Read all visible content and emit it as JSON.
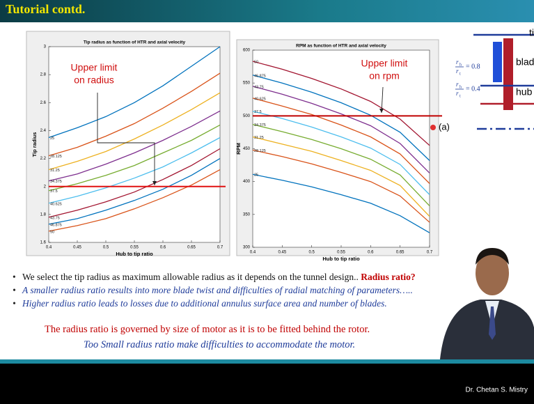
{
  "header": {
    "title": "Tutorial contd."
  },
  "chart_data": [
    {
      "type": "line",
      "title": "Tip radius as function of HTR and axial velocity",
      "xlabel": "Hub to tip ratio",
      "ylabel": "Tip radius",
      "x": [
        0.4,
        0.45,
        0.5,
        0.55,
        0.6,
        0.65,
        0.7
      ],
      "xlim": [
        0.4,
        0.7
      ],
      "xticks": [
        0.4,
        0.45,
        0.5,
        0.55,
        0.6,
        0.65,
        0.7
      ],
      "ylim": [
        1.6,
        3
      ],
      "yticks": [
        1.6,
        1.8,
        2,
        2.2,
        2.4,
        2.6,
        2.8,
        3
      ],
      "series": [
        {
          "name": "25",
          "color": "#0072BD",
          "values": [
            2.35,
            2.42,
            2.5,
            2.6,
            2.72,
            2.86,
            3.0
          ]
        },
        {
          "name": "28.125",
          "color": "#D95319",
          "values": [
            2.22,
            2.28,
            2.36,
            2.45,
            2.56,
            2.68,
            2.81
          ]
        },
        {
          "name": "31.25",
          "color": "#EDB120",
          "values": [
            2.12,
            2.18,
            2.25,
            2.34,
            2.44,
            2.55,
            2.67
          ]
        },
        {
          "name": "34.375",
          "color": "#7E2F8E",
          "values": [
            2.04,
            2.09,
            2.16,
            2.24,
            2.33,
            2.43,
            2.54
          ]
        },
        {
          "name": "37.5",
          "color": "#77AC30",
          "values": [
            1.97,
            2.02,
            2.08,
            2.15,
            2.24,
            2.33,
            2.44
          ]
        },
        {
          "name": "40.625",
          "color": "#4DBEEE",
          "values": [
            1.88,
            1.93,
            1.99,
            2.06,
            2.14,
            2.24,
            2.35
          ]
        },
        {
          "name": "43.75",
          "color": "#A2142F",
          "values": [
            1.78,
            1.83,
            1.89,
            1.96,
            2.05,
            2.15,
            2.27
          ]
        },
        {
          "name": "46.875",
          "color": "#0072BD",
          "values": [
            1.73,
            1.77,
            1.83,
            1.9,
            1.98,
            2.08,
            2.2
          ]
        },
        {
          "name": "50",
          "color": "#D95319",
          "values": [
            1.68,
            1.72,
            1.77,
            1.84,
            1.92,
            2.01,
            2.12
          ]
        }
      ],
      "reference_line": {
        "value": 2,
        "color": "#e01010"
      },
      "annotation": [
        "Upper limit",
        "on radius"
      ]
    },
    {
      "type": "line",
      "title": "RPM as function of HTR and axial velocity",
      "xlabel": "Hub to tip ratio",
      "ylabel": "RPM",
      "x": [
        0.4,
        0.45,
        0.5,
        0.55,
        0.6,
        0.65,
        0.7
      ],
      "xlim": [
        0.4,
        0.7
      ],
      "xticks": [
        0.4,
        0.45,
        0.5,
        0.55,
        0.6,
        0.65,
        0.7
      ],
      "ylim": [
        300,
        600
      ],
      "yticks": [
        300,
        350,
        400,
        450,
        500,
        550,
        600
      ],
      "series": [
        {
          "name": "50",
          "color": "#A2142F",
          "values": [
            583,
            571,
            557,
            541,
            522,
            495,
            455
          ]
        },
        {
          "name": "46.875",
          "color": "#0072BD",
          "values": [
            562,
            550,
            536,
            520,
            501,
            475,
            432
          ]
        },
        {
          "name": "43.75",
          "color": "#7E2F8E",
          "values": [
            545,
            533,
            519,
            503,
            485,
            458,
            413
          ]
        },
        {
          "name": "40.625",
          "color": "#D95319",
          "values": [
            527,
            515,
            502,
            486,
            468,
            442,
            397
          ]
        },
        {
          "name": "37.5",
          "color": "#4DBEEE",
          "values": [
            507,
            496,
            483,
            468,
            451,
            426,
            380
          ]
        },
        {
          "name": "34.375",
          "color": "#77AC30",
          "values": [
            487,
            476,
            464,
            450,
            434,
            410,
            363
          ]
        },
        {
          "name": "31.25",
          "color": "#EDB120",
          "values": [
            468,
            457,
            446,
            432,
            417,
            394,
            347
          ]
        },
        {
          "name": "28.125",
          "color": "#D95319",
          "values": [
            448,
            438,
            427,
            414,
            400,
            378,
            338
          ]
        },
        {
          "name": "25",
          "color": "#0072BD",
          "values": [
            411,
            402,
            392,
            380,
            367,
            348,
            322
          ]
        }
      ],
      "reference_line": {
        "value": 500,
        "color": "#c00000"
      },
      "annotation": [
        "Upper limit",
        "on rpm"
      ],
      "label": "(a)"
    }
  ],
  "diagram": {
    "top_label": "ti",
    "blade_label": "blad",
    "hub_label": "hub",
    "fractions": [
      {
        "num": "r",
        "num_sub": "h",
        "den": "r",
        "den_sub": "t",
        "value": "= 0.8"
      },
      {
        "num": "r",
        "num_sub": "h",
        "den": "r",
        "den_sub": "t",
        "value": "= 0.4"
      }
    ]
  },
  "bullets": [
    {
      "text": "We select the tip radius as maximum allowable radius as it depends on the tunnel design..",
      "emphasis": "Radius ratio?"
    },
    {
      "text": "A smaller radius ratio results into more blade twist and difficulties of radial matching of parameters….."
    },
    {
      "text": "Higher radius ratio leads to losses due to additional annulus surface area and number of blades."
    }
  ],
  "notes": [
    "The radius ratio is governed by size of motor as it is to be fitted behind the rotor.",
    "Too Small radius ratio make difficulties to accommodate the motor."
  ],
  "footer": {
    "presenter": "Dr. Chetan S. Mistry"
  }
}
